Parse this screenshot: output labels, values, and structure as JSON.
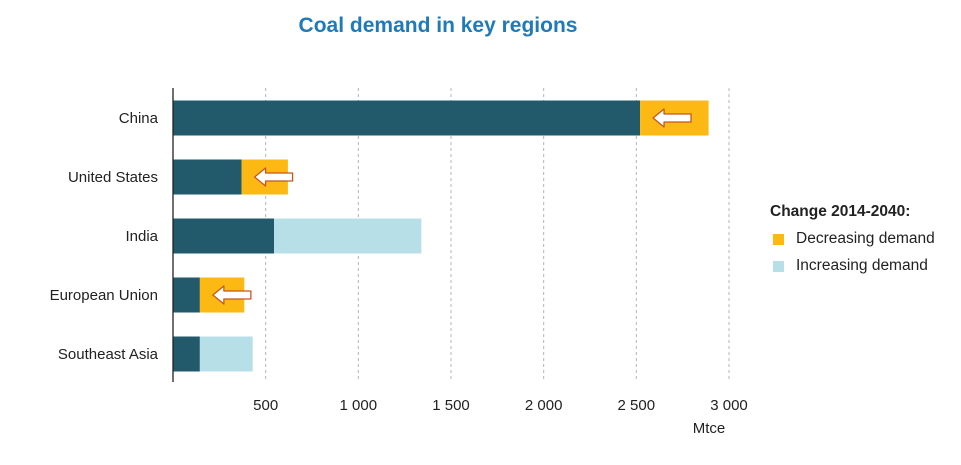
{
  "chart_data": {
    "type": "bar",
    "orientation": "horizontal",
    "stacked": true,
    "title": "Coal demand in key regions",
    "xlabel": "Mtce",
    "categories": [
      "China",
      "United States",
      "India",
      "European Union",
      "Southeast Asia"
    ],
    "series": [
      {
        "name": "",
        "color": "#22596b",
        "values": [
          2520,
          370,
          545,
          145,
          145
        ]
      },
      {
        "name": "Decreasing demand",
        "color": "#fdb913",
        "values": [
          370,
          250,
          0,
          240,
          0
        ]
      },
      {
        "name": "Increasing demand",
        "color": "#b7dfe8",
        "values": [
          0,
          0,
          795,
          0,
          285
        ]
      }
    ],
    "xlim": [
      0,
      3000
    ],
    "xticks": [
      500,
      1000,
      1500,
      2000,
      2500,
      3000
    ],
    "xtick_labels": [
      "500",
      "1 000",
      "1 500",
      "2 000",
      "2 500",
      "3 000"
    ],
    "grid": "vertical-dashed",
    "legend": {
      "title": "Change 2014-2040:",
      "placement": "right",
      "items": [
        {
          "label": "Decreasing demand",
          "color": "#fdb913"
        },
        {
          "label": "Increasing demand",
          "color": "#b7dfe8"
        }
      ]
    },
    "annotations": "left-pointing arrows inside decreasing-demand segments"
  }
}
